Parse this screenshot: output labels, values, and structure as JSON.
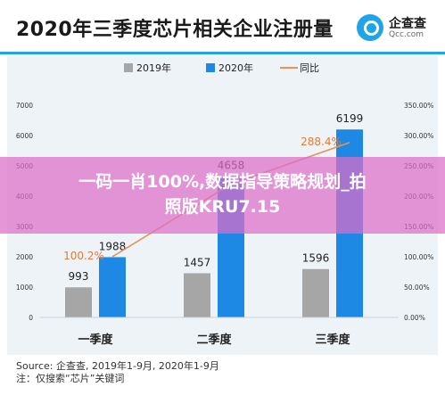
{
  "title": "2020年三季度芯片相关企业注册量",
  "brand": {
    "name": "企查查",
    "sub": "Qcc.com"
  },
  "colors": {
    "bar2019": "#a6a6a6",
    "bar2020": "#1e88e5",
    "line": "#e8925a",
    "brand": "#1fa4e6"
  },
  "chart_data": {
    "type": "bar",
    "categories": [
      "一季度",
      "二季度",
      "三季度"
    ],
    "series": [
      {
        "name": "2019年",
        "type": "bar",
        "values": [
          993,
          1457,
          1596
        ],
        "labels": [
          "993",
          "1457",
          "1596"
        ]
      },
      {
        "name": "2020年",
        "type": "bar",
        "values": [
          1988,
          4658,
          6199
        ],
        "labels": [
          "1988",
          "4658",
          "6199"
        ]
      },
      {
        "name": "同比",
        "type": "line",
        "axis": "right",
        "values": [
          100.2,
          219.7,
          288.4
        ],
        "labels": [
          "100.2%",
          "",
          "288.4%"
        ]
      }
    ],
    "ylim": [
      0,
      7000
    ],
    "y_ticks": [
      "0",
      "1000",
      "2000",
      "3000",
      "4000",
      "5000",
      "6000",
      "7000"
    ],
    "y2lim": [
      0,
      350
    ],
    "y2_ticks": [
      "0.00%",
      "50.00%",
      "100.00%",
      "150.00%",
      "200.00%",
      "250.00%",
      "300.00%",
      "350.00%"
    ],
    "legend": "top-center"
  },
  "banner": {
    "line1": "一码一肖100%,数据指导策略规划_拍",
    "line2": "照版KRU7.15"
  },
  "source": {
    "line1": "Source: 企查查, 2019年1-9月, 2020年1-9月",
    "line2": "注：仅搜索“芯片”关键词"
  }
}
